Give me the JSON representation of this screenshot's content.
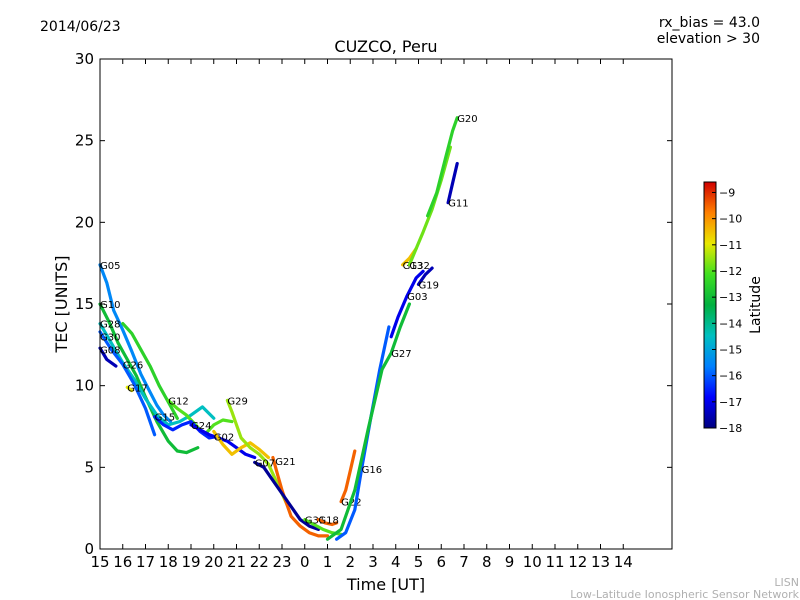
{
  "header": {
    "date": "2014/06/23",
    "rx_bias": "rx_bias = 43.0",
    "elevation": "elevation > 30"
  },
  "footer": {
    "line1": "LISN",
    "line2": "Low-Latitude Ionospheric Sensor Network"
  },
  "chart_data": {
    "type": "line",
    "title": "CUZCO, Peru",
    "xlabel": "Time [UT]",
    "ylabel": "TEC [UNITS]",
    "x_ticks": [
      "15",
      "16",
      "17",
      "18",
      "19",
      "20",
      "21",
      "22",
      "23",
      "0",
      "1",
      "2",
      "3",
      "4",
      "5",
      "6",
      "7",
      "8",
      "9",
      "10",
      "11",
      "12",
      "13",
      "14"
    ],
    "y_ticks": [
      0,
      5,
      10,
      15,
      20,
      25,
      30
    ],
    "ylim": [
      0,
      30
    ],
    "xlim_hours_from_15UT": [
      0,
      25
    ],
    "colorbar": {
      "label": "Latitude",
      "ticks": [
        -9,
        -10,
        -11,
        -12,
        -13,
        -14,
        -15,
        -16,
        -17,
        -18
      ],
      "range": [
        -18,
        -8.6
      ]
    },
    "series": [
      {
        "name": "G05",
        "label_x": 0.0,
        "label_y": 17.4,
        "lat": -15.5,
        "x": [
          0.0,
          0.3,
          0.6,
          1.0,
          1.4,
          1.8,
          2.2,
          2.5,
          2.8,
          3.1
        ],
        "y": [
          17.4,
          16.3,
          14.6,
          13.4,
          12.1,
          10.7,
          9.6,
          8.8,
          8.2,
          7.8
        ]
      },
      {
        "name": "G10",
        "label_x": 0.0,
        "label_y": 15.0,
        "lat": -13.0,
        "x": [
          0.0,
          0.4,
          0.8,
          1.2,
          1.6,
          2.0,
          2.5,
          3.0,
          3.4,
          3.8,
          4.3
        ],
        "y": [
          15.0,
          13.9,
          12.6,
          11.6,
          10.6,
          9.3,
          7.8,
          6.6,
          6.0,
          5.9,
          6.2
        ]
      },
      {
        "name": "G28",
        "label_x": 0.0,
        "label_y": 13.8,
        "lat": -14.5,
        "x": [
          0.0,
          0.5,
          1.0,
          1.5,
          2.0,
          2.5,
          3.0,
          3.5,
          4.0,
          4.5,
          5.0
        ],
        "y": [
          13.8,
          12.6,
          11.4,
          10.4,
          9.2,
          8.2,
          7.6,
          7.8,
          8.2,
          8.7,
          8.0
        ]
      },
      {
        "name": "G30",
        "label_x": 0.0,
        "label_y": 13.0,
        "lat": -16.0,
        "x": [
          0.0,
          0.5,
          1.0,
          1.5,
          2.0,
          2.4
        ],
        "y": [
          13.3,
          12.2,
          11.3,
          10.1,
          8.6,
          7.0
        ]
      },
      {
        "name": "G08",
        "label_x": 0.0,
        "label_y": 12.2,
        "lat": -17.5,
        "x": [
          0.0,
          0.3,
          0.7
        ],
        "y": [
          12.3,
          11.6,
          11.2
        ]
      },
      {
        "name": "G26",
        "label_x": 1.0,
        "label_y": 11.3,
        "lat": -12.5,
        "x": [
          1.0,
          1.4,
          1.8,
          2.2,
          2.6,
          3.0,
          3.4
        ],
        "y": [
          13.8,
          13.2,
          12.2,
          11.2,
          10.0,
          9.0,
          8.0
        ]
      },
      {
        "name": "G17",
        "label_x": 1.2,
        "label_y": 9.9,
        "lat": -11.0,
        "x": [
          1.2,
          1.4
        ],
        "y": [
          9.9,
          9.7
        ]
      },
      {
        "name": "G12",
        "label_x": 3.0,
        "label_y": 9.1,
        "lat": -12.0,
        "x": [
          3.0,
          3.4,
          3.8,
          4.2,
          4.6,
          5.0,
          5.4,
          5.8
        ],
        "y": [
          9.1,
          8.6,
          8.2,
          7.6,
          7.0,
          7.6,
          7.9,
          7.8
        ]
      },
      {
        "name": "G15",
        "label_x": 2.4,
        "label_y": 8.1,
        "lat": -16.5,
        "x": [
          2.4,
          2.8,
          3.2,
          3.6,
          4.0,
          4.4,
          4.8,
          5.2
        ],
        "y": [
          8.1,
          7.6,
          7.3,
          7.6,
          7.8,
          7.2,
          6.8,
          6.9
        ]
      },
      {
        "name": "G24",
        "label_x": 4.0,
        "label_y": 7.6,
        "lat": -17.0,
        "x": [
          4.0,
          4.4,
          4.8,
          5.2,
          5.6,
          6.0,
          6.4,
          6.8
        ],
        "y": [
          7.6,
          7.3,
          7.0,
          6.8,
          6.6,
          6.2,
          5.8,
          5.6
        ]
      },
      {
        "name": "G02",
        "label_x": 5.0,
        "label_y": 6.9,
        "lat": -10.5,
        "x": [
          5.0,
          5.4,
          5.8,
          6.2,
          6.6,
          7.0,
          7.4
        ],
        "y": [
          7.2,
          6.4,
          5.8,
          6.2,
          6.5,
          6.1,
          5.6
        ]
      },
      {
        "name": "G29",
        "label_x": 5.6,
        "label_y": 9.1,
        "lat": -11.5,
        "x": [
          5.6,
          5.8,
          6.0,
          6.2,
          6.6,
          7.0,
          7.4,
          7.8,
          8.2
        ],
        "y": [
          9.1,
          8.4,
          7.6,
          6.8,
          6.2,
          5.8,
          5.2,
          4.0,
          2.8
        ]
      },
      {
        "name": "G21",
        "label_x": 7.7,
        "label_y": 5.4,
        "lat": -9.5,
        "x": [
          7.6,
          7.8,
          8.0,
          8.2,
          8.4,
          8.8,
          9.2,
          9.6,
          10.0
        ],
        "y": [
          5.6,
          4.6,
          3.6,
          2.8,
          2.0,
          1.4,
          1.0,
          0.8,
          0.8
        ]
      },
      {
        "name": "G07",
        "label_x": 6.8,
        "label_y": 5.3,
        "lat": -17.8,
        "x": [
          6.8,
          7.2,
          7.6,
          8.0,
          8.4,
          8.8,
          9.2,
          9.6
        ],
        "y": [
          5.3,
          5.0,
          4.2,
          3.4,
          2.6,
          1.8,
          1.4,
          1.2
        ]
      },
      {
        "name": "G31",
        "label_x": 9.0,
        "label_y": 1.8,
        "lat": -12.0,
        "x": [
          9.0,
          9.4,
          9.8,
          10.2,
          10.6
        ],
        "y": [
          1.8,
          1.5,
          1.2,
          1.0,
          0.9
        ]
      },
      {
        "name": "G18",
        "label_x": 9.6,
        "label_y": 1.8,
        "lat": -9.5,
        "x": [
          9.6,
          9.9,
          10.2,
          10.4
        ],
        "y": [
          1.8,
          1.6,
          1.5,
          1.6
        ]
      },
      {
        "name": "G22",
        "label_x": 10.6,
        "label_y": 2.9,
        "lat": -9.5,
        "x": [
          10.6,
          10.8,
          11.0,
          11.2
        ],
        "y": [
          2.9,
          3.6,
          4.8,
          6.0
        ]
      },
      {
        "name": "G16",
        "label_x": 11.5,
        "label_y": 4.9,
        "lat": -16.0,
        "x": [
          10.4,
          10.8,
          11.2,
          11.5,
          11.9,
          12.3,
          12.7
        ],
        "y": [
          0.6,
          1.0,
          2.4,
          4.9,
          8.0,
          11.0,
          13.6
        ]
      },
      {
        "name": "G27",
        "label_x": 12.8,
        "label_y": 12.0,
        "lat": -13.0,
        "x": [
          10.0,
          10.6,
          11.2,
          11.8,
          12.4,
          12.8,
          13.2,
          13.6
        ],
        "y": [
          0.6,
          1.2,
          3.6,
          7.4,
          11.0,
          12.0,
          13.6,
          15.0
        ]
      },
      {
        "name": "G03",
        "label_x": 13.5,
        "label_y": 15.5,
        "lat": -17.0,
        "x": [
          12.8,
          13.1,
          13.5,
          13.9,
          14.2
        ],
        "y": [
          13.0,
          14.2,
          15.5,
          16.6,
          17.0
        ]
      },
      {
        "name": "G19",
        "label_x": 14.0,
        "label_y": 16.2,
        "lat": -17.5,
        "x": [
          14.0,
          14.3,
          14.6
        ],
        "y": [
          16.2,
          16.8,
          17.2
        ]
      },
      {
        "name": "G13",
        "label_x": 13.3,
        "label_y": 17.4,
        "lat": -10.5,
        "x": [
          13.3,
          13.6,
          13.9
        ],
        "y": [
          17.4,
          17.8,
          18.4
        ]
      },
      {
        "name": "G32",
        "label_x": 13.6,
        "label_y": 17.4,
        "lat": -11.8,
        "x": [
          13.6,
          13.9,
          14.2,
          14.6,
          15.0,
          15.4
        ],
        "y": [
          17.4,
          18.4,
          19.4,
          20.8,
          22.6,
          24.6
        ]
      },
      {
        "name": "G20",
        "label_x": 15.7,
        "label_y": 26.4,
        "lat": -12.5,
        "x": [
          14.4,
          14.8,
          15.2,
          15.5,
          15.7
        ],
        "y": [
          20.4,
          21.8,
          24.0,
          25.6,
          26.4
        ]
      },
      {
        "name": "G11",
        "label_x": 15.3,
        "label_y": 21.2,
        "lat": -17.5,
        "x": [
          15.3,
          15.5,
          15.7
        ],
        "y": [
          21.2,
          22.4,
          23.6
        ]
      }
    ]
  }
}
